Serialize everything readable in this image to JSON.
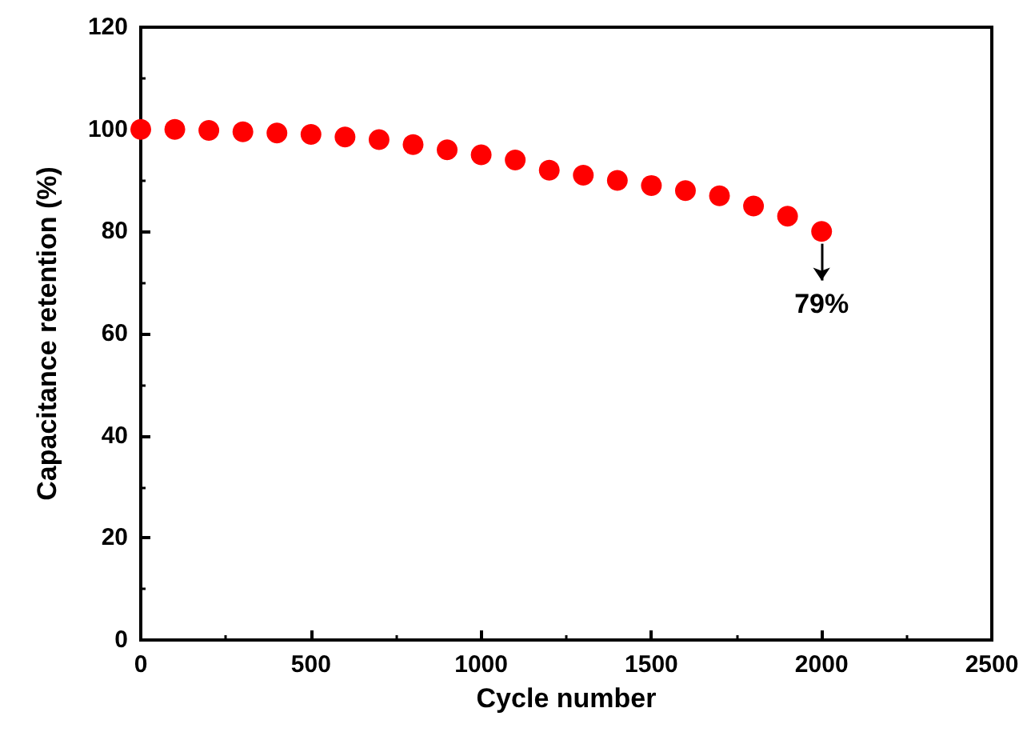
{
  "chart_data": {
    "type": "scatter",
    "xlabel": "Cycle number",
    "ylabel": "Capacitance retention (%)",
    "x": [
      0,
      100,
      200,
      300,
      400,
      500,
      600,
      700,
      800,
      900,
      1000,
      1100,
      1200,
      1300,
      1400,
      1500,
      1600,
      1700,
      1800,
      1900,
      2000
    ],
    "values": [
      100,
      100,
      99.8,
      99.5,
      99.3,
      99,
      98.5,
      98,
      97,
      96,
      95,
      94,
      92,
      91,
      90,
      89,
      88,
      87,
      85,
      83,
      80
    ],
    "color": "#ff0000",
    "marker": "circle",
    "xlim": [
      0,
      2500
    ],
    "xticks": [
      0,
      500,
      1000,
      1500,
      2000,
      2500
    ],
    "ylim": [
      0,
      120
    ],
    "yticks": [
      0,
      20,
      40,
      60,
      80,
      100,
      120
    ],
    "annotations": [
      {
        "text": "79%",
        "x": 2000,
        "y": 80
      }
    ]
  }
}
